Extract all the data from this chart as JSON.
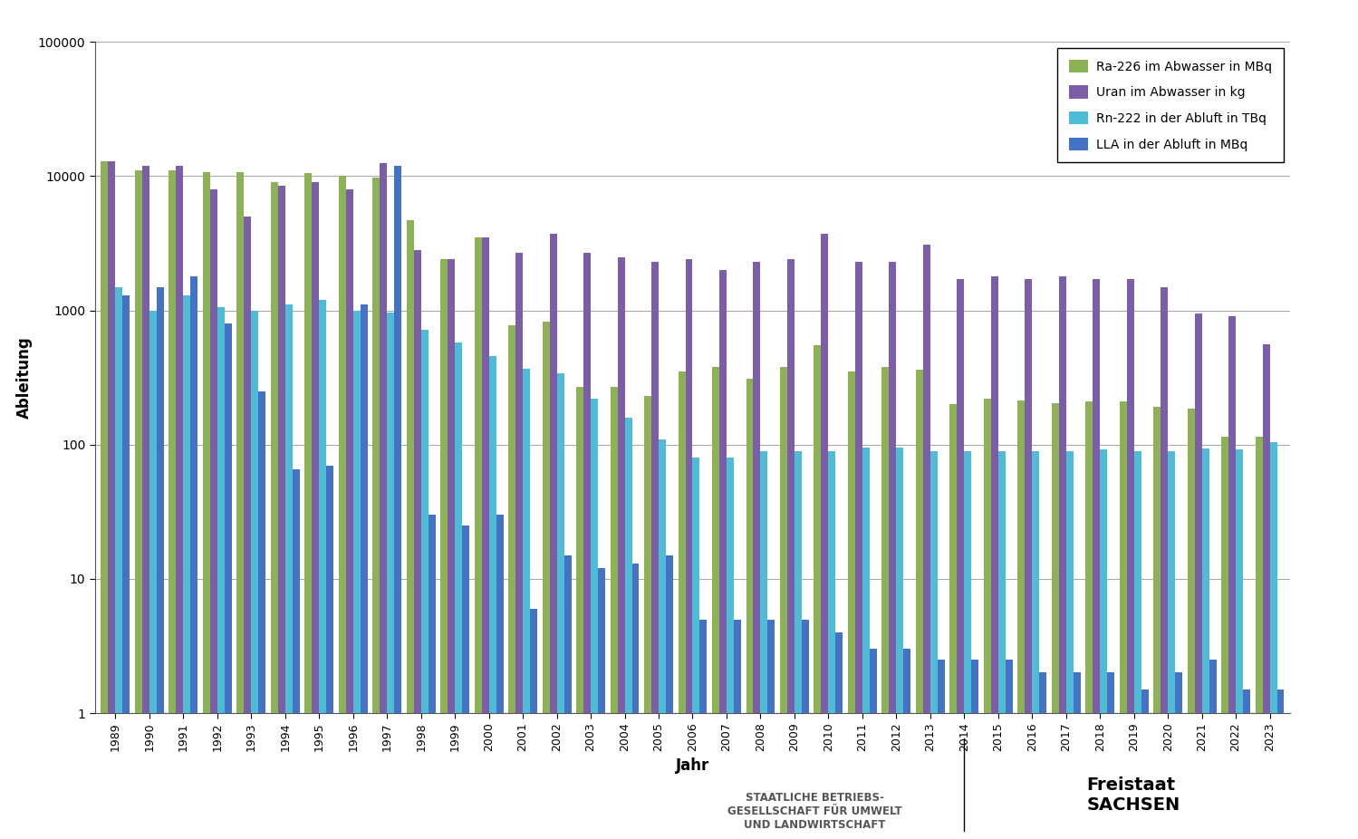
{
  "years": [
    1989,
    1990,
    1991,
    1992,
    1993,
    1994,
    1995,
    1996,
    1997,
    1998,
    1999,
    2000,
    2001,
    2002,
    2003,
    2004,
    2005,
    2006,
    2007,
    2008,
    2009,
    2010,
    2011,
    2012,
    2013,
    2014,
    2015,
    2016,
    2017,
    2018,
    2019,
    2020,
    2021,
    2022,
    2023
  ],
  "ra226": [
    13000,
    11000,
    11000,
    10700,
    10700,
    9000,
    10500,
    10000,
    9800,
    4700,
    2400,
    3500,
    780,
    830,
    270,
    270,
    230,
    350,
    380,
    310,
    380,
    550,
    350,
    380,
    360,
    200,
    220,
    215,
    205,
    210,
    210,
    190,
    185,
    115,
    115
  ],
  "uran": [
    13000,
    12000,
    12000,
    8000,
    5000,
    8500,
    9000,
    8000,
    12500,
    2800,
    2400,
    3500,
    2700,
    3700,
    2700,
    2500,
    2300,
    2400,
    2000,
    2300,
    2400,
    3700,
    2300,
    2300,
    3100,
    1700,
    1800,
    1700,
    1800,
    1700,
    1700,
    1500,
    950,
    900,
    560
  ],
  "rn222": [
    1500,
    1000,
    1300,
    1050,
    1000,
    1100,
    1200,
    1000,
    960,
    720,
    580,
    460,
    370,
    340,
    220,
    160,
    110,
    80,
    80,
    90,
    90,
    90,
    95,
    95,
    90,
    90,
    90,
    90,
    90,
    92,
    90,
    90,
    93,
    92,
    105
  ],
  "lla": [
    1300,
    1500,
    1800,
    800,
    250,
    65,
    70,
    1100,
    12000,
    30,
    25,
    30,
    6,
    15,
    12,
    13,
    15,
    5,
    5,
    5,
    5,
    4,
    3,
    3,
    2.5,
    2.5,
    2.5,
    2,
    2,
    2,
    1.5,
    2,
    2.5,
    1.5,
    1.5
  ],
  "colors": {
    "ra226": "#8db255",
    "uran": "#7b5ea7",
    "rn222": "#4dbcd4",
    "lla": "#4472c4"
  },
  "legend_labels": [
    "Ra-226 im Abwasser in MBq",
    "Uran im Abwasser in kg",
    "Rn-222 in der Abluft in TBq",
    "LLA in der Abluft in MBq"
  ],
  "ylabel": "Ableitung",
  "xlabel": "Jahr",
  "ylim_min": 1,
  "ylim_max": 100000,
  "background_color": "#ffffff",
  "grid_color": "#aaaaaa"
}
